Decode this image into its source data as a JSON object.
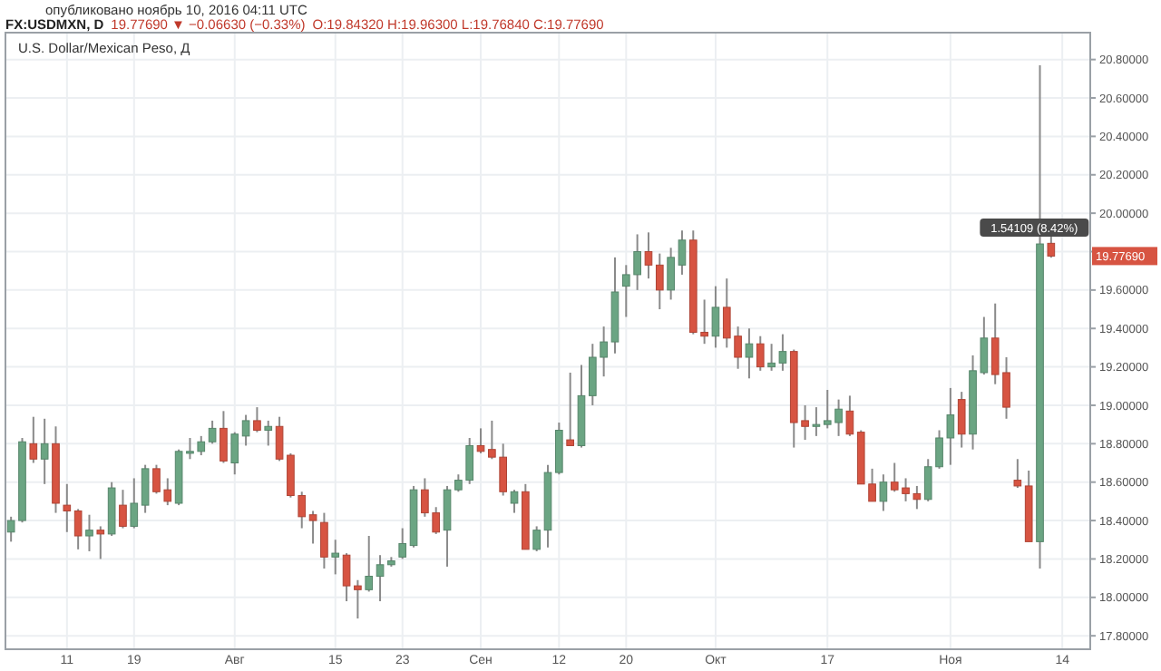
{
  "chart_data": {
    "type": "candlestick",
    "title": "FX:USDMXN, D",
    "subtitle": "U.S. Dollar/Mexican Peso, Д",
    "annotations": [
      "опубликовано ноябрь 10, 2016 04:11 UTC",
      "19.77690 ▼ −0.06630 (−0.33%)",
      "O:19.84320 H:19.96300 L:19.76840 C:19.77690",
      {
        "text": "1.54109 (8.42%)",
        "y": 19.84
      },
      "19.77690"
    ],
    "categories": [
      null,
      null,
      null,
      null,
      null,
      "11",
      null,
      null,
      null,
      null,
      null,
      "19",
      null,
      null,
      null,
      null,
      null,
      null,
      null,
      null,
      "Авг",
      null,
      null,
      null,
      null,
      null,
      null,
      null,
      null,
      "15",
      null,
      null,
      null,
      null,
      null,
      "23",
      null,
      null,
      null,
      null,
      null,
      null,
      "Сен",
      null,
      null,
      null,
      null,
      null,
      null,
      "12",
      null,
      null,
      null,
      null,
      null,
      "20",
      null,
      null,
      null,
      null,
      null,
      null,
      null,
      "Окт",
      null,
      null,
      null,
      null,
      null,
      null,
      null,
      null,
      null,
      "17",
      null,
      null,
      null,
      null,
      null,
      null,
      null,
      null,
      null,
      null,
      "Ноя",
      null,
      null,
      null,
      null,
      null,
      null,
      null,
      null,
      null,
      "14",
      null,
      null
    ],
    "colors": [
      "#6ba583",
      "#6ba583",
      "#d75442",
      "#6ba583",
      "#d75442",
      "#d75442",
      "#d75442",
      "#6ba583",
      "#d75442",
      "#6ba583",
      "#d75442",
      "#6ba583",
      "#6ba583",
      "#d75442",
      "#d75442",
      "#6ba583",
      "#6ba583",
      "#6ba583",
      "#6ba583",
      "#d75442",
      "#6ba583",
      "#6ba583",
      "#d75442",
      "#6ba583",
      "#d75442",
      "#d75442",
      "#d75442",
      "#d75442",
      "#d75442",
      "#6ba583",
      "#d75442",
      "#d75442",
      "#6ba583",
      "#6ba583",
      "#6ba583",
      "#6ba583",
      "#6ba583",
      "#d75442",
      "#d75442",
      "#6ba583",
      "#6ba583",
      "#6ba583",
      "#d75442",
      "#d75442",
      "#d75442",
      "#6ba583",
      "#d75442",
      "#6ba583",
      "#6ba583",
      "#6ba583",
      "#d75442",
      "#6ba583",
      "#6ba583",
      "#6ba583",
      "#6ba583",
      "#6ba583",
      "#6ba583",
      "#d75442",
      "#d75442",
      "#6ba583",
      "#6ba583",
      "#d75442",
      "#d75442",
      "#6ba583",
      "#d75442",
      "#d75442",
      "#6ba583",
      "#d75442",
      "#6ba583",
      "#6ba583",
      "#d75442",
      "#d75442",
      "#6ba583",
      "#6ba583",
      "#6ba583",
      "#d75442",
      "#d75442",
      "#d75442",
      "#6ba583",
      "#d75442",
      "#d75442",
      "#d75442",
      "#6ba583",
      "#6ba583",
      "#6ba583",
      "#d75442",
      "#6ba583",
      "#6ba583",
      "#d75442",
      "#d75442",
      "#d75442",
      "#d75442",
      "#6ba583",
      "#d75442",
      null,
      null,
      null
    ],
    "ohlc": [
      [
        18.34,
        18.42,
        18.29,
        18.4
      ],
      [
        18.4,
        18.83,
        18.39,
        18.81
      ],
      [
        18.8,
        18.94,
        18.7,
        18.72
      ],
      [
        18.72,
        18.93,
        18.59,
        18.8
      ],
      [
        18.8,
        18.89,
        18.44,
        18.49
      ],
      [
        18.48,
        18.59,
        18.34,
        18.45
      ],
      [
        18.45,
        18.46,
        18.25,
        18.32
      ],
      [
        18.32,
        18.43,
        18.24,
        18.35
      ],
      [
        18.35,
        18.37,
        18.2,
        18.33
      ],
      [
        18.33,
        18.6,
        18.32,
        18.57
      ],
      [
        18.48,
        18.56,
        18.36,
        18.37
      ],
      [
        18.37,
        18.62,
        18.36,
        18.49
      ],
      [
        18.48,
        18.69,
        18.44,
        18.67
      ],
      [
        18.67,
        18.69,
        18.54,
        18.55
      ],
      [
        18.56,
        18.62,
        18.48,
        18.5
      ],
      [
        18.49,
        18.77,
        18.48,
        18.76
      ],
      [
        18.75,
        18.83,
        18.72,
        18.76
      ],
      [
        18.76,
        18.84,
        18.74,
        18.81
      ],
      [
        18.81,
        18.92,
        18.8,
        18.88
      ],
      [
        18.88,
        18.97,
        18.7,
        18.71
      ],
      [
        18.7,
        18.86,
        18.64,
        18.85
      ],
      [
        18.84,
        18.95,
        18.79,
        18.92
      ],
      [
        18.92,
        18.99,
        18.86,
        18.87
      ],
      [
        18.87,
        18.92,
        18.79,
        18.89
      ],
      [
        18.89,
        18.94,
        18.71,
        18.72
      ],
      [
        18.74,
        18.75,
        18.52,
        18.53
      ],
      [
        18.53,
        18.55,
        18.36,
        18.42
      ],
      [
        18.43,
        18.45,
        18.28,
        18.4
      ],
      [
        18.39,
        18.44,
        18.15,
        18.21
      ],
      [
        18.21,
        18.3,
        18.12,
        18.23
      ],
      [
        18.22,
        18.23,
        17.98,
        18.06
      ],
      [
        18.06,
        18.09,
        17.89,
        18.04
      ],
      [
        18.04,
        18.32,
        18.03,
        18.11
      ],
      [
        18.11,
        18.22,
        17.98,
        18.17
      ],
      [
        18.17,
        18.21,
        18.16,
        18.19
      ],
      [
        18.21,
        18.36,
        18.2,
        18.28
      ],
      [
        18.27,
        18.58,
        18.26,
        18.56
      ],
      [
        18.56,
        18.62,
        18.42,
        18.44
      ],
      [
        18.44,
        18.47,
        18.33,
        18.34
      ],
      [
        18.35,
        18.58,
        18.16,
        18.56
      ],
      [
        18.56,
        18.64,
        18.55,
        18.61
      ],
      [
        18.61,
        18.83,
        18.59,
        18.79
      ],
      [
        18.79,
        18.88,
        18.75,
        18.76
      ],
      [
        18.77,
        18.92,
        18.72,
        18.73
      ],
      [
        18.73,
        18.8,
        18.53,
        18.55
      ],
      [
        18.49,
        18.56,
        18.44,
        18.55
      ],
      [
        18.55,
        18.59,
        18.25,
        18.25
      ],
      [
        18.25,
        18.37,
        18.24,
        18.35
      ],
      [
        18.35,
        18.69,
        18.26,
        18.65
      ],
      [
        18.65,
        18.91,
        18.64,
        18.87
      ],
      [
        18.82,
        19.17,
        18.79,
        18.79
      ],
      [
        18.79,
        19.21,
        18.78,
        19.05
      ],
      [
        19.05,
        19.32,
        19.0,
        19.25
      ],
      [
        19.25,
        19.41,
        19.15,
        19.33
      ],
      [
        19.33,
        19.77,
        19.27,
        19.59
      ],
      [
        19.62,
        19.73,
        19.46,
        19.68
      ],
      [
        19.68,
        19.89,
        19.6,
        19.8
      ],
      [
        19.8,
        19.9,
        19.66,
        19.73
      ],
      [
        19.73,
        19.79,
        19.5,
        19.6
      ],
      [
        19.6,
        19.82,
        19.55,
        19.77
      ],
      [
        19.73,
        19.91,
        19.68,
        19.86
      ],
      [
        19.86,
        19.91,
        19.37,
        19.38
      ],
      [
        19.38,
        19.55,
        19.32,
        19.36
      ],
      [
        19.36,
        19.62,
        19.3,
        19.51
      ],
      [
        19.51,
        19.66,
        19.3,
        19.35
      ],
      [
        19.36,
        19.41,
        19.19,
        19.25
      ],
      [
        19.25,
        19.4,
        19.14,
        19.32
      ],
      [
        19.32,
        19.36,
        19.18,
        19.2
      ],
      [
        19.2,
        19.32,
        19.18,
        19.22
      ],
      [
        19.22,
        19.37,
        19.18,
        19.28
      ],
      [
        19.28,
        19.29,
        18.78,
        18.91
      ],
      [
        18.92,
        19.0,
        18.82,
        18.89
      ],
      [
        18.89,
        18.99,
        18.84,
        18.9
      ],
      [
        18.9,
        19.08,
        18.88,
        18.92
      ],
      [
        18.91,
        19.03,
        18.84,
        18.98
      ],
      [
        18.97,
        19.05,
        18.84,
        18.85
      ],
      [
        18.86,
        18.87,
        18.59,
        18.59
      ],
      [
        18.59,
        18.67,
        18.5,
        18.5
      ],
      [
        18.5,
        18.64,
        18.45,
        18.6
      ],
      [
        18.6,
        18.7,
        18.55,
        18.56
      ],
      [
        18.57,
        18.62,
        18.5,
        18.54
      ],
      [
        18.54,
        18.58,
        18.46,
        18.51
      ],
      [
        18.51,
        18.72,
        18.5,
        18.68
      ],
      [
        18.68,
        18.87,
        18.67,
        18.83
      ],
      [
        18.83,
        19.09,
        18.69,
        18.95
      ],
      [
        19.03,
        19.07,
        18.78,
        18.85
      ],
      [
        18.85,
        19.26,
        18.77,
        19.18
      ],
      [
        19.17,
        19.46,
        19.16,
        19.35
      ],
      [
        19.35,
        19.53,
        19.11,
        19.16
      ],
      [
        19.17,
        19.25,
        18.93,
        18.99
      ],
      [
        18.61,
        18.72,
        18.57,
        18.58
      ],
      [
        18.58,
        18.66,
        18.29,
        18.29
      ],
      [
        18.29,
        20.77,
        18.15,
        19.84
      ],
      [
        19.8432,
        19.963,
        19.7684,
        19.7769
      ],
      null,
      null,
      null
    ],
    "ylim": [
      17.73,
      20.94
    ],
    "yticks": [
      {
        "value": 17.8,
        "label": "17.80000"
      },
      {
        "value": 18.0,
        "label": "18.00000"
      },
      {
        "value": 18.2,
        "label": "18.20000"
      },
      {
        "value": 18.4,
        "label": "18.40000"
      },
      {
        "value": 18.6,
        "label": "18.60000"
      },
      {
        "value": 18.8,
        "label": "18.80000"
      },
      {
        "value": 19.0,
        "label": "19.00000"
      },
      {
        "value": 19.2,
        "label": "19.20000"
      },
      {
        "value": 19.4,
        "label": "19.40000"
      },
      {
        "value": 19.6,
        "label": "19.60000"
      },
      {
        "value": 19.8,
        "label": null
      },
      {
        "value": 20.0,
        "label": "20.00000"
      },
      {
        "value": 20.2,
        "label": "20.20000"
      },
      {
        "value": 20.4,
        "label": "20.40000"
      },
      {
        "value": 20.6,
        "label": "20.60000"
      },
      {
        "value": 20.8,
        "label": "20.80000"
      }
    ],
    "grid": true
  }
}
